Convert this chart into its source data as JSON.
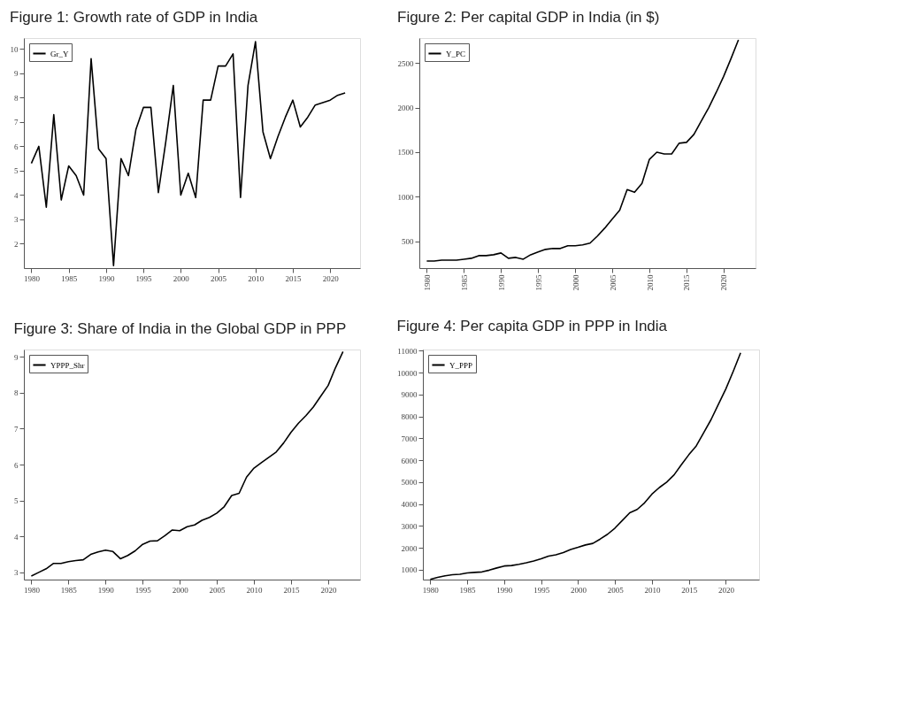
{
  "chart_data": [
    {
      "type": "line",
      "title": "Figure 1: Growth rate of GDP in India",
      "x": [
        1980,
        1981,
        1982,
        1983,
        1984,
        1985,
        1986,
        1987,
        1988,
        1989,
        1990,
        1991,
        1992,
        1993,
        1994,
        1995,
        1996,
        1997,
        1998,
        1999,
        2000,
        2001,
        2002,
        2003,
        2004,
        2005,
        2006,
        2007,
        2008,
        2009,
        2010,
        2011,
        2012,
        2013,
        2014,
        2015,
        2016,
        2017,
        2018,
        2019,
        2020,
        2021,
        2022
      ],
      "series": [
        {
          "name": "Gr_Y",
          "color": "#000000",
          "values": [
            5.3,
            6.0,
            3.5,
            7.3,
            3.8,
            5.2,
            4.8,
            4.0,
            9.6,
            5.9,
            5.5,
            1.1,
            5.5,
            4.8,
            6.7,
            7.6,
            7.6,
            4.1,
            6.2,
            8.5,
            4.0,
            4.9,
            3.9,
            7.9,
            7.9,
            9.3,
            9.3,
            9.8,
            3.9,
            8.5,
            10.3,
            6.6,
            5.5,
            6.4,
            7.2,
            7.9,
            6.8,
            7.2,
            7.7,
            7.8,
            7.9,
            8.1,
            8.2
          ]
        }
      ],
      "xlim": [
        1979,
        2024
      ],
      "ylim": [
        1,
        10.45
      ],
      "xticks": [
        1980,
        1985,
        1990,
        1995,
        2000,
        2005,
        2010,
        2015,
        2020
      ],
      "yticks": [
        2,
        3,
        4,
        5,
        6,
        7,
        8,
        9,
        10
      ],
      "legend": "top left",
      "grid": false,
      "marker": "none",
      "line_style": "solid"
    },
    {
      "type": "line",
      "title": "Figure 2: Per capital GDP in India (in $)",
      "x": [
        1980,
        1981,
        1982,
        1983,
        1984,
        1985,
        1986,
        1987,
        1988,
        1989,
        1990,
        1991,
        1992,
        1993,
        1994,
        1995,
        1996,
        1997,
        1998,
        1999,
        2000,
        2001,
        2002,
        2003,
        2004,
        2005,
        2006,
        2007,
        2008,
        2009,
        2010,
        2011,
        2012,
        2013,
        2014,
        2015,
        2016,
        2017,
        2018,
        2019,
        2020,
        2021,
        2022
      ],
      "series": [
        {
          "name": "Y_PC",
          "color": "#000000",
          "values": [
            280,
            280,
            290,
            290,
            290,
            300,
            310,
            340,
            340,
            350,
            370,
            310,
            320,
            300,
            350,
            380,
            410,
            420,
            420,
            450,
            450,
            460,
            480,
            560,
            650,
            750,
            850,
            1080,
            1050,
            1150,
            1420,
            1500,
            1480,
            1480,
            1600,
            1610,
            1700,
            1850,
            2000,
            2170,
            2350,
            2550,
            2760
          ]
        }
      ],
      "xlim": [
        1979,
        2024.3
      ],
      "ylim": [
        200,
        2780
      ],
      "xticks": [
        1980,
        1985,
        1990,
        1995,
        2000,
        2005,
        2010,
        2015,
        2020
      ],
      "yticks": [
        500,
        1000,
        1500,
        2000,
        2500
      ],
      "legend": "top left",
      "grid": false,
      "marker": "none",
      "line_style": "solid"
    },
    {
      "type": "line",
      "title": "Figure 3: Share of India in the Global GDP in PPP",
      "x": [
        1980,
        1981,
        1982,
        1983,
        1984,
        1985,
        1986,
        1987,
        1988,
        1989,
        1990,
        1991,
        1992,
        1993,
        1994,
        1995,
        1996,
        1997,
        1998,
        1999,
        2000,
        2001,
        2002,
        2003,
        2004,
        2005,
        2006,
        2007,
        2008,
        2009,
        2010,
        2011,
        2012,
        2013,
        2014,
        2015,
        2016,
        2017,
        2018,
        2019,
        2020,
        2021,
        2022
      ],
      "series": [
        {
          "name": "YPPP_Shr",
          "color": "#000000",
          "values": [
            2.9,
            3.0,
            3.1,
            3.25,
            3.25,
            3.3,
            3.33,
            3.35,
            3.5,
            3.57,
            3.62,
            3.58,
            3.38,
            3.47,
            3.6,
            3.78,
            3.87,
            3.88,
            4.02,
            4.18,
            4.16,
            4.27,
            4.32,
            4.45,
            4.53,
            4.65,
            4.83,
            5.14,
            5.2,
            5.65,
            5.9,
            6.05,
            6.2,
            6.35,
            6.6,
            6.9,
            7.15,
            7.36,
            7.6,
            7.9,
            8.2,
            8.7,
            9.14
          ]
        }
      ],
      "xlim": [
        1979,
        2024.3
      ],
      "ylim": [
        2.8,
        9.2
      ],
      "xticks": [
        1980,
        1985,
        1990,
        1995,
        2000,
        2005,
        2010,
        2015,
        2020
      ],
      "yticks": [
        3,
        4,
        5,
        6,
        7,
        8,
        9
      ],
      "legend": "top left",
      "grid": false,
      "marker": "none",
      "line_style": "solid"
    },
    {
      "type": "line",
      "title": "Figure 4:  Per capita GDP in PPP in India",
      "x": [
        1980,
        1981,
        1982,
        1983,
        1984,
        1985,
        1986,
        1987,
        1988,
        1989,
        1990,
        1991,
        1992,
        1993,
        1994,
        1995,
        1996,
        1997,
        1998,
        1999,
        2000,
        2001,
        2002,
        2003,
        2004,
        2005,
        2006,
        2007,
        2008,
        2009,
        2010,
        2011,
        2012,
        2013,
        2014,
        2015,
        2016,
        2017,
        2018,
        2019,
        2020,
        2021,
        2022
      ],
      "series": [
        {
          "name": "Y_PPP",
          "color": "#000000",
          "values": [
            560,
            650,
            720,
            770,
            790,
            850,
            880,
            900,
            980,
            1080,
            1170,
            1190,
            1250,
            1320,
            1400,
            1500,
            1620,
            1680,
            1780,
            1920,
            2020,
            2130,
            2200,
            2400,
            2620,
            2900,
            3250,
            3600,
            3750,
            4050,
            4450,
            4750,
            5000,
            5330,
            5800,
            6250,
            6650,
            7250,
            7850,
            8550,
            9250,
            10050,
            10900
          ]
        }
      ],
      "xlim": [
        1979,
        2024.5
      ],
      "ylim": [
        550,
        11050
      ],
      "xticks": [
        1980,
        1985,
        1990,
        1995,
        2000,
        2005,
        2010,
        2015,
        2020
      ],
      "yticks": [
        1000,
        2000,
        3000,
        4000,
        5000,
        6000,
        7000,
        8000,
        9000,
        10000,
        11000
      ],
      "legend": "top left",
      "grid": false,
      "marker": "none",
      "line_style": "solid"
    }
  ]
}
